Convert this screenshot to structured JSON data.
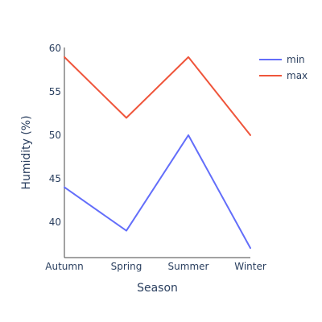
{
  "chart_data": {
    "type": "line",
    "title": "",
    "xlabel": "Season",
    "ylabel": "Humidity (%)",
    "categories": [
      "Autumn",
      "Spring",
      "Summer",
      "Winter"
    ],
    "series": [
      {
        "name": "min",
        "values": [
          44,
          39,
          50,
          37
        ],
        "color": "#636efa"
      },
      {
        "name": "max",
        "values": [
          59,
          52,
          59,
          50
        ],
        "color": "#ef553b"
      }
    ],
    "yticks": [
      40,
      45,
      50,
      55,
      60
    ],
    "ylim": [
      35.9,
      60.1
    ],
    "grid": false,
    "legend_position": "top-right",
    "axis_color": "#444444",
    "text_color": "#2a3f5f"
  }
}
